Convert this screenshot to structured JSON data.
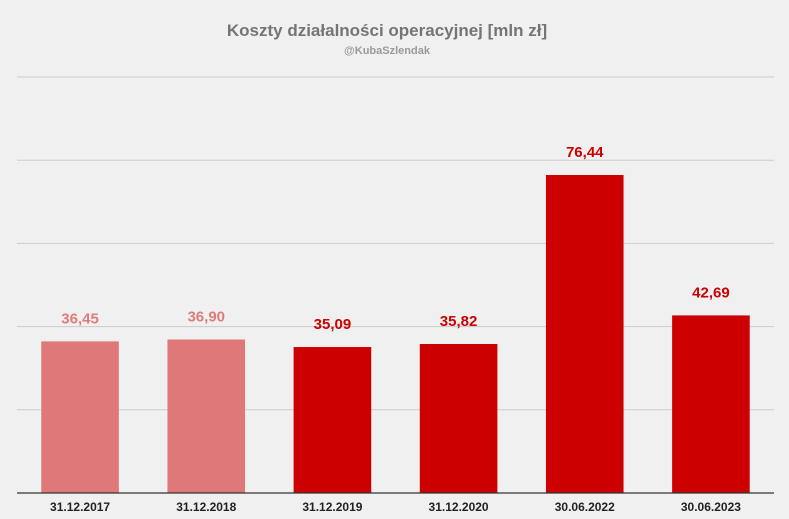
{
  "chart_data": {
    "type": "bar",
    "title": "Koszty działalności operacyjnej [mln zł]",
    "subtitle": "@KubaSzlendak",
    "xlabel": "",
    "ylabel": "",
    "categories": [
      "31.12.2017",
      "31.12.2018",
      "31.12.2019",
      "31.12.2020",
      "30.06.2022",
      "30.06.2023"
    ],
    "values": [
      36.45,
      36.9,
      35.09,
      35.82,
      76.44,
      42.69
    ],
    "value_labels": [
      "36,45",
      "36,90",
      "35,09",
      "35,82",
      "76,44",
      "42,69"
    ],
    "bar_colors": [
      "#df7979",
      "#df7979",
      "#cc0000",
      "#cc0000",
      "#cc0000",
      "#cc0000"
    ],
    "label_colors": [
      "#e07b7b",
      "#e07b7b",
      "#cc0000",
      "#cc0000",
      "#cc0000",
      "#cc0000"
    ],
    "ylim": [
      0,
      100
    ],
    "y_gridlines": [
      20,
      40,
      60,
      80,
      100
    ],
    "y_tick_labels_visible": false,
    "grid": true,
    "legend": "none",
    "colors": {
      "background": "#f0f0f0",
      "gridline": "#cccccc",
      "axis": "#333333"
    }
  }
}
